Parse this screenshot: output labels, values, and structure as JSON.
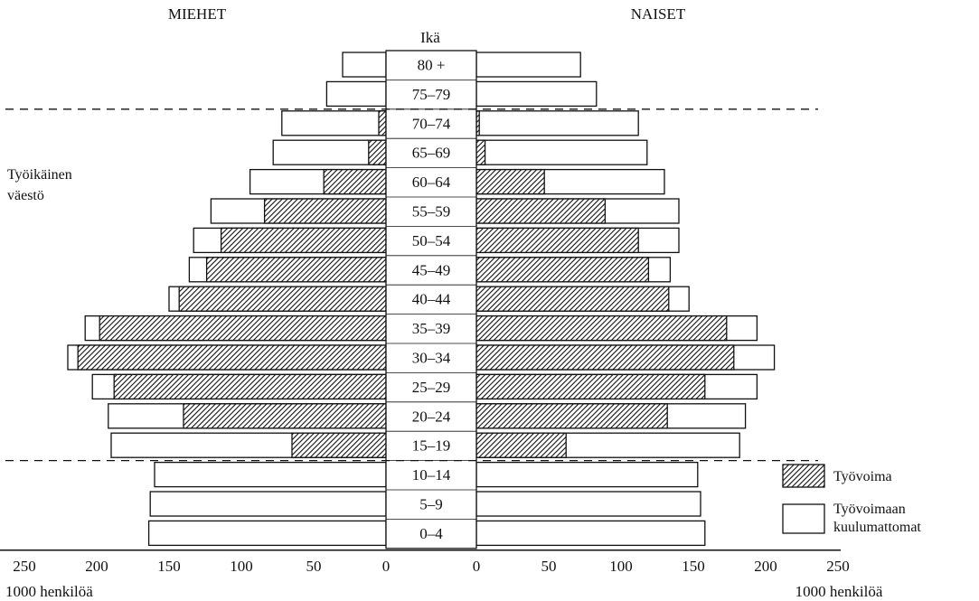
{
  "chart_data": {
    "type": "bar",
    "subtype": "population-pyramid",
    "left_title": "MIEHET",
    "right_title": "NAISET",
    "center_title": "Ikä",
    "unit_left": "1000 henkilöä",
    "unit_right": "1000 henkilöä",
    "side_annotation": [
      "Työikäinen",
      "väestö"
    ],
    "working_age_range": [
      "15–19",
      "70–74"
    ],
    "ticks": [
      250,
      200,
      150,
      100,
      50,
      0
    ],
    "xlim": [
      0,
      250
    ],
    "categories": [
      "80 +",
      "75–79",
      "70–74",
      "65–69",
      "60–64",
      "55–59",
      "50–54",
      "45–49",
      "40–44",
      "35–39",
      "30–34",
      "25–29",
      "20–24",
      "15–19",
      "10–14",
      "5–9",
      "0–4"
    ],
    "series": [
      {
        "name": "Työvoima",
        "side": "male",
        "values": [
          0,
          0,
          5,
          12,
          43,
          84,
          114,
          124,
          143,
          198,
          213,
          188,
          140,
          65,
          0,
          0,
          0
        ]
      },
      {
        "name": "Työvoimaan kuulumattomat",
        "side": "male",
        "values": [
          30,
          41,
          67,
          66,
          51,
          37,
          19,
          12,
          7,
          10,
          7,
          15,
          52,
          125,
          160,
          163,
          164
        ]
      },
      {
        "name": "Työvoima",
        "side": "female",
        "values": [
          0,
          0,
          2,
          6,
          47,
          89,
          112,
          119,
          133,
          173,
          178,
          158,
          132,
          62,
          0,
          0,
          0
        ]
      },
      {
        "name": "Työvoimaan kuulumattomat",
        "side": "female",
        "values": [
          72,
          83,
          110,
          112,
          83,
          51,
          28,
          15,
          14,
          21,
          28,
          36,
          54,
          120,
          153,
          155,
          158
        ]
      }
    ],
    "legend": [
      {
        "label": "Työvoima",
        "style": "hatched"
      },
      {
        "label": "Työvoimaan kuulumattomat",
        "style": "white"
      }
    ],
    "legend_position": "bottom-right",
    "colors": {
      "ink": "#111111",
      "fill": "#ffffff"
    }
  }
}
